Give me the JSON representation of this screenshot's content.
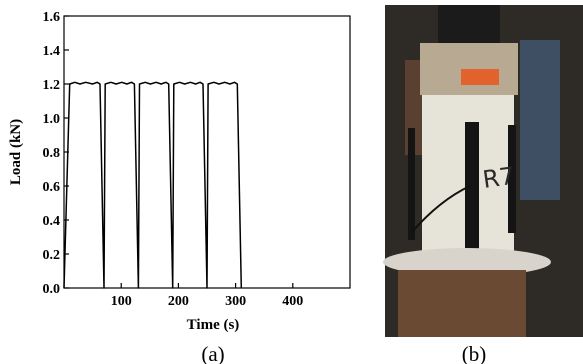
{
  "chart_data": {
    "type": "line",
    "title": "",
    "xlabel": "Time (s)",
    "ylabel": "Load (kN)",
    "xlim": [
      0,
      500
    ],
    "ylim": [
      0.0,
      1.6
    ],
    "xticks": [
      "100",
      "200",
      "300",
      "400"
    ],
    "yticks": [
      "0.0",
      "0.2",
      "0.4",
      "0.6",
      "0.8",
      "1.0",
      "1.2",
      "1.4",
      "1.6"
    ],
    "grid": false,
    "series": [
      {
        "x": [
          0,
          10,
          19,
          28,
          38,
          50,
          58,
          63,
          70,
          72,
          82,
          91,
          101,
          110,
          118,
          123,
          130,
          132,
          142,
          151,
          161,
          170,
          178,
          183,
          190,
          192,
          202,
          211,
          221,
          230,
          238,
          243,
          250,
          252,
          262,
          271,
          281,
          290,
          298,
          303,
          310
        ],
        "y": [
          0.0,
          1.2,
          1.21,
          1.2,
          1.21,
          1.2,
          1.21,
          1.2,
          0.0,
          1.2,
          1.21,
          1.2,
          1.21,
          1.2,
          1.21,
          1.2,
          0.0,
          1.2,
          1.21,
          1.2,
          1.21,
          1.2,
          1.21,
          1.2,
          0.0,
          1.2,
          1.21,
          1.2,
          1.21,
          1.2,
          1.21,
          1.2,
          0.0,
          1.2,
          1.21,
          1.2,
          1.21,
          1.2,
          1.21,
          1.2,
          0.0
        ],
        "color": "#000000"
      }
    ]
  },
  "panel_labels": {
    "a": "(a)",
    "b": "(b)"
  },
  "photo": {
    "handwriting": "R7",
    "colors": {
      "background": "#2e2a26",
      "cylinder": "#e6e3d8",
      "cap": "#b8aa92",
      "tag": "#e2622e",
      "rod": "#141414",
      "base": "#6a4a32"
    }
  }
}
